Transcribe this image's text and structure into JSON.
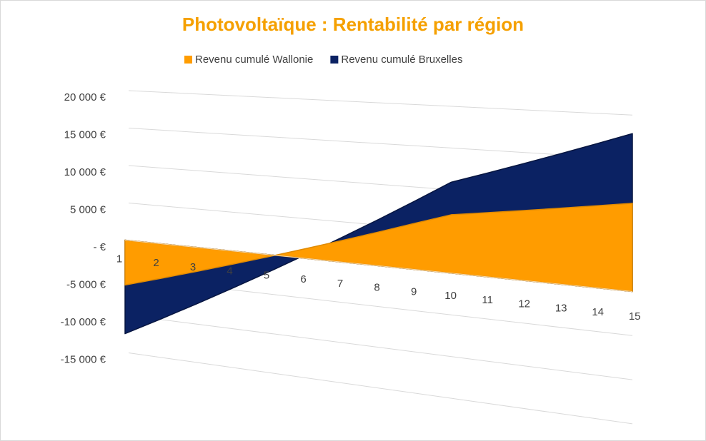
{
  "chart_data": {
    "type": "area3d",
    "title": "Photovoltaïque : Rentabilité par région",
    "categories": [
      "1",
      "2",
      "3",
      "4",
      "5",
      "6",
      "7",
      "8",
      "9",
      "10",
      "11",
      "12",
      "13",
      "14",
      "15"
    ],
    "series": [
      {
        "name": "Revenu cumulé Wallonie",
        "color": "#ff9c00",
        "values": [
          -6000,
          -4550,
          -3100,
          -1650,
          -200,
          1250,
          2700,
          4150,
          5600,
          7000,
          7600,
          8200,
          8800,
          9400,
          10000
        ]
      },
      {
        "name": "Revenu cumulé Bruxelles",
        "color": "#0b2263",
        "values": [
          -12500,
          -9900,
          -7300,
          -4700,
          -2100,
          500,
          3100,
          5700,
          8300,
          10900,
          12300,
          13700,
          15100,
          16500,
          17900
        ]
      }
    ],
    "ylim": [
      -15000,
      20000
    ],
    "yticks": [
      {
        "value": -15000,
        "label": "-15 000 €"
      },
      {
        "value": -10000,
        "label": "-10 000 €"
      },
      {
        "value": -5000,
        "label": "-5 000 €"
      },
      {
        "value": 0,
        "label": "-   €"
      },
      {
        "value": 5000,
        "label": "5 000 €"
      },
      {
        "value": 10000,
        "label": "10 000 €"
      },
      {
        "value": 15000,
        "label": "15 000 €"
      },
      {
        "value": 20000,
        "label": "20 000 €"
      }
    ],
    "grid": true
  }
}
